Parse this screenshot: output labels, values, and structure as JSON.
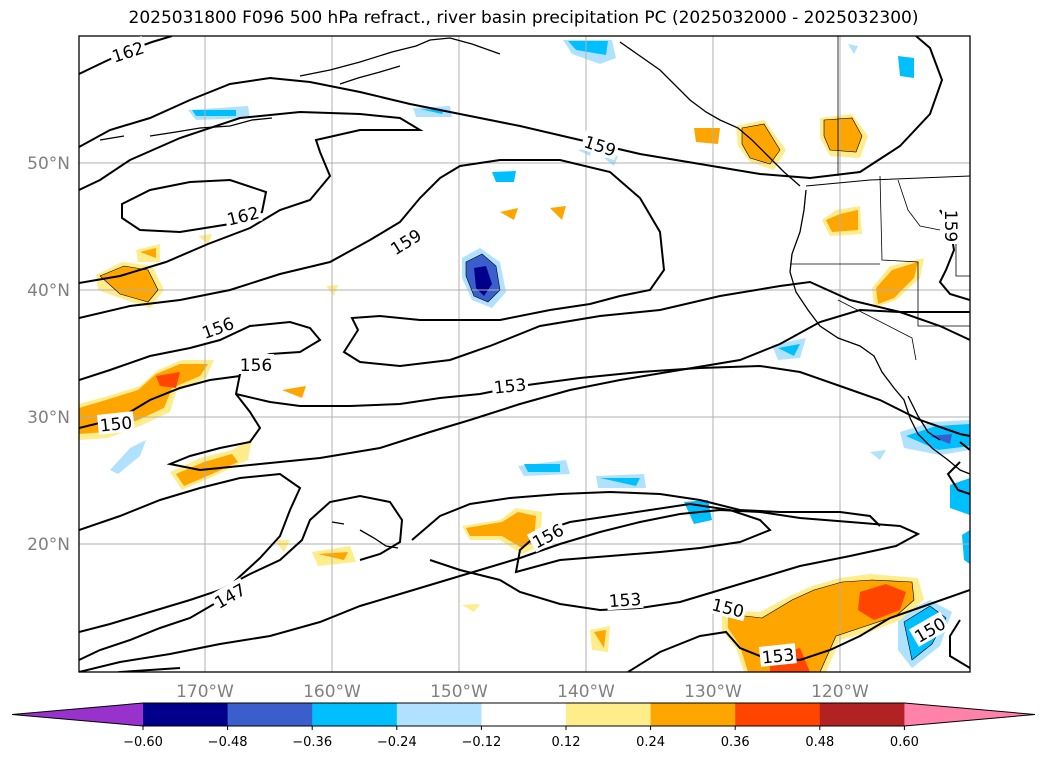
{
  "title": "2025031800 F096 500 hPa refract., river basin precipitation PC (2025032000 - 2025032300)",
  "map": {
    "lat_labels": [
      "50°N",
      "40°N",
      "30°N",
      "20°N"
    ],
    "lon_labels": [
      "170°W",
      "160°W",
      "150°W",
      "140°W",
      "130°W",
      "120°W"
    ],
    "contour_labels": [
      "162",
      "162",
      "159",
      "159",
      "159",
      "156",
      "156",
      "156",
      "153",
      "153",
      "153",
      "150",
      "150",
      "150",
      "147"
    ]
  },
  "colorbar": {
    "tick_labels": [
      "−0.60",
      "−0.48",
      "−0.36",
      "−0.24",
      "−0.12",
      "0.12",
      "0.24",
      "0.36",
      "0.48",
      "0.60"
    ],
    "colors": [
      "#9932cc",
      "#00008b",
      "#3a5fcd",
      "#00bfff",
      "#b0e2ff",
      "#ffffff",
      "#ffec8b",
      "#ffa500",
      "#ff4500",
      "#b22222",
      "#ff82ab"
    ]
  }
}
